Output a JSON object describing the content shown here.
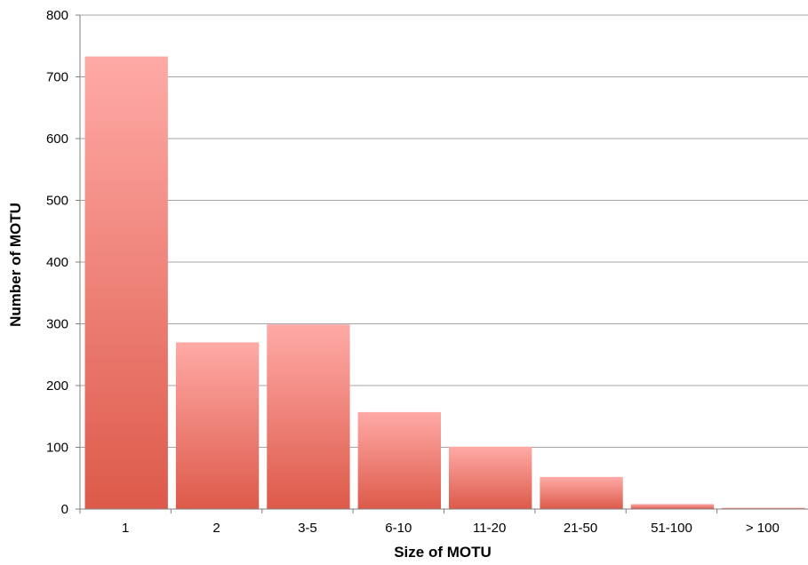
{
  "chart_data": {
    "type": "bar",
    "title": "",
    "xlabel": "Size of MOTU",
    "ylabel": "Number of MOTU",
    "categories": [
      "1",
      "2",
      "3-5",
      "6-10",
      "11-20",
      "21-50",
      "51-100",
      "> 100"
    ],
    "values": [
      733,
      270,
      299,
      157,
      101,
      52,
      8,
      2
    ],
    "ylim": [
      0,
      800
    ],
    "yticks": [
      0,
      100,
      200,
      300,
      400,
      500,
      600,
      700,
      800
    ],
    "grid": "horizontal",
    "legend": "none",
    "colors": {
      "bar_top": "#ffaaa6",
      "bar_bottom": "#dd5a4a",
      "grid": "#a6a6a6",
      "axis": "#7f7f7f"
    }
  }
}
